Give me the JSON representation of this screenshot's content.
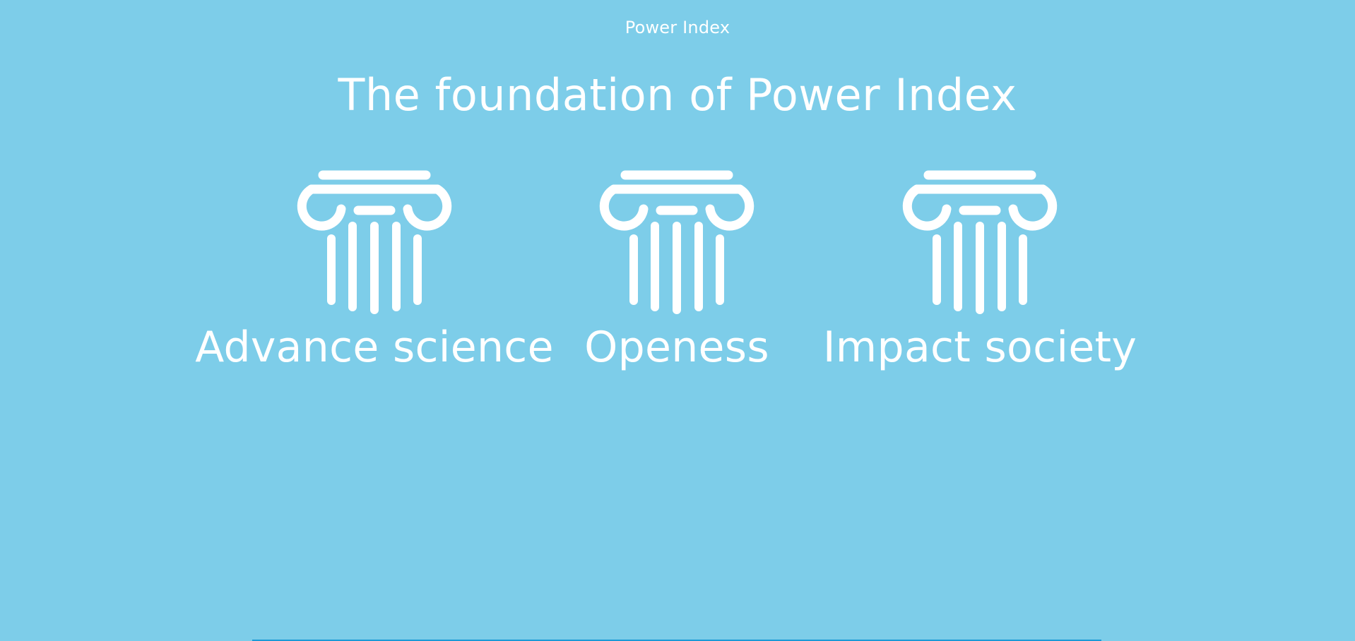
{
  "header": {
    "site_name": "Power Index",
    "headline": "The foundation of Power Index"
  },
  "pillars": [
    {
      "label": "Advance science",
      "icon": "column-icon"
    },
    {
      "label": "Openess",
      "icon": "column-icon"
    },
    {
      "label": "Impact society",
      "icon": "column-icon"
    }
  ],
  "colors": {
    "background": "#7dcde9",
    "text": "#ffffff",
    "accent_bar": "#1a9ad6"
  }
}
